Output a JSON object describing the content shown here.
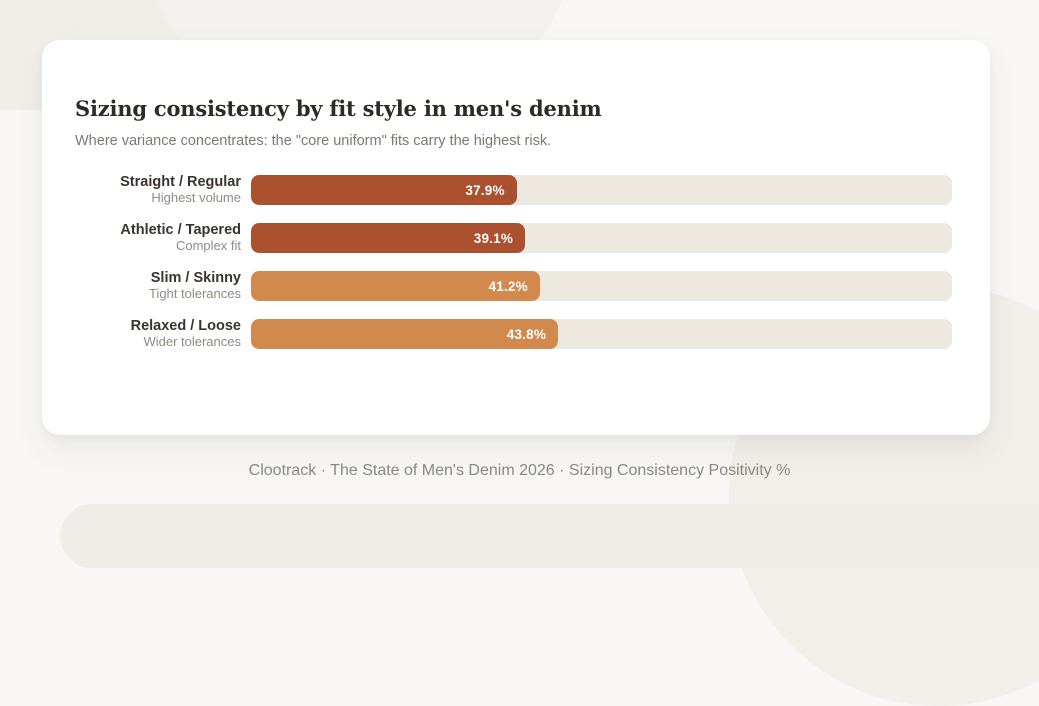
{
  "card": {
    "title": "Sizing consistency by fit style in men's denim",
    "subtitle": "Where variance concentrates: the \"core uniform\" fits carry the highest risk."
  },
  "rows": [
    {
      "label": "Straight / Regular",
      "note": "Highest volume",
      "value": 37.9,
      "value_label": "37.9%",
      "color": "#ac5130"
    },
    {
      "label": "Athletic / Tapered",
      "note": "Complex fit",
      "value": 39.1,
      "value_label": "39.1%",
      "color": "#ac5130"
    },
    {
      "label": "Slim / Skinny",
      "note": "Tight tolerances",
      "value": 41.2,
      "value_label": "41.2%",
      "color": "#d2894e"
    },
    {
      "label": "Relaxed / Loose",
      "note": "Wider tolerances",
      "value": 43.8,
      "value_label": "43.8%",
      "color": "#d2894e"
    }
  ],
  "footer": {
    "source_line": "Clootrack · The State of Men's Denim 2026 · Sizing Consistency Positivity %"
  },
  "colors": {
    "bar_dark": "#ac5130",
    "bar_light": "#d2894e",
    "track": "#eee9e0",
    "card_background": "#ffffff",
    "page_background": "#f8f7f5"
  },
  "chart_data": {
    "type": "bar",
    "orientation": "horizontal",
    "title": "Sizing consistency by fit style in men's denim",
    "subtitle": "Where variance concentrates: the \"core uniform\" fits carry the highest risk.",
    "categories": [
      "Straight / Regular",
      "Athletic / Tapered",
      "Slim / Skinny",
      "Relaxed / Loose"
    ],
    "category_notes": [
      "Highest volume",
      "Complex fit",
      "Tight tolerances",
      "Wider tolerances"
    ],
    "values": [
      37.9,
      39.1,
      41.2,
      43.8
    ],
    "value_labels": [
      "37.9%",
      "39.1%",
      "41.2%",
      "43.8%"
    ],
    "bar_colors": [
      "#ac5130",
      "#ac5130",
      "#d2894e",
      "#d2894e"
    ],
    "xlabel": "Sizing Consistency Positivity %",
    "xlim": [
      0,
      100
    ],
    "grid": false,
    "legend": false,
    "source": "Clootrack · The State of Men's Denim 2026 · Sizing Consistency Positivity %"
  }
}
